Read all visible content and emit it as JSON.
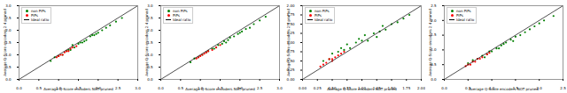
{
  "chart_data": [
    {
      "type": "scatter",
      "x_label": "Average Q-Score encoders NOT pruned",
      "y_label": "Average Q-Score encoders 2:4 pruned",
      "xlim": [
        0,
        3
      ],
      "ylim": [
        0,
        3
      ],
      "xticks": [
        {
          "value": 0,
          "label": "0.0"
        },
        {
          "value": 0.5,
          "label": "0.5"
        },
        {
          "value": 1,
          "label": "1.0"
        },
        {
          "value": 1.5,
          "label": "1.5"
        },
        {
          "value": 2,
          "label": "2.0"
        },
        {
          "value": 2.5,
          "label": "2.5"
        },
        {
          "value": 3,
          "label": "3.0"
        }
      ],
      "yticks": [
        {
          "value": 0,
          "label": "0.0"
        },
        {
          "value": 0.5,
          "label": "0.5"
        },
        {
          "value": 1,
          "label": "1.0"
        },
        {
          "value": 1.5,
          "label": "1.5"
        },
        {
          "value": 2,
          "label": "2.0"
        },
        {
          "value": 2.5,
          "label": "2.5"
        },
        {
          "value": 3,
          "label": "3.0"
        }
      ],
      "legend": "upper left",
      "series": [
        {
          "name": "non PiPs",
          "color": "green",
          "marker": "circle",
          "x": [
            0.8,
            0.9,
            1.0,
            1.1,
            1.2,
            1.25,
            1.3,
            1.4,
            1.5,
            1.55,
            1.6,
            1.7,
            1.8,
            1.85,
            1.9,
            2.0,
            2.1,
            2.2,
            2.3,
            2.45,
            2.6,
            1.35,
            1.65,
            1.95
          ],
          "y": [
            0.75,
            0.9,
            0.95,
            1.0,
            1.15,
            1.2,
            1.2,
            1.3,
            1.45,
            1.5,
            1.5,
            1.6,
            1.75,
            1.8,
            1.8,
            1.9,
            2.0,
            2.1,
            2.2,
            2.35,
            2.5,
            1.4,
            1.55,
            1.85
          ]
        },
        {
          "name": "PiPs",
          "color": "red",
          "marker": "circle",
          "x": [
            0.95,
            1.0,
            1.05,
            1.1,
            1.15,
            1.2,
            1.25,
            1.3,
            1.35,
            1.45
          ],
          "y": [
            0.9,
            0.95,
            1.0,
            1.0,
            1.1,
            1.15,
            1.15,
            1.25,
            1.3,
            1.35
          ]
        },
        {
          "name": "Ideal ratio",
          "type": "line",
          "color": "black",
          "x": [
            0,
            3
          ],
          "y": [
            0,
            3
          ]
        }
      ]
    },
    {
      "type": "scatter",
      "x_label": "Average Q-Score encoders NOT pruned",
      "y_label": "Average Q-Score encoders 2:4 pruned",
      "xlim": [
        0,
        3
      ],
      "ylim": [
        0,
        3
      ],
      "xticks": [
        {
          "value": 0,
          "label": "0.0"
        },
        {
          "value": 0.5,
          "label": "0.5"
        },
        {
          "value": 1,
          "label": "1.0"
        },
        {
          "value": 1.5,
          "label": "1.5"
        },
        {
          "value": 2,
          "label": "2.0"
        },
        {
          "value": 2.5,
          "label": "2.5"
        },
        {
          "value": 3,
          "label": "3.0"
        }
      ],
      "yticks": [
        {
          "value": 0,
          "label": "0.0"
        },
        {
          "value": 0.5,
          "label": "0.5"
        },
        {
          "value": 1,
          "label": "1.0"
        },
        {
          "value": 1.5,
          "label": "1.5"
        },
        {
          "value": 2,
          "label": "2.0"
        },
        {
          "value": 2.5,
          "label": "2.5"
        },
        {
          "value": 3,
          "label": "3.0"
        }
      ],
      "legend": "upper left",
      "series": [
        {
          "name": "non PiPs",
          "color": "green",
          "marker": "circle",
          "x": [
            0.75,
            0.85,
            0.95,
            1.05,
            1.15,
            1.2,
            1.3,
            1.4,
            1.45,
            1.55,
            1.6,
            1.7,
            1.75,
            1.85,
            1.95,
            2.05,
            2.15,
            2.25,
            2.35,
            2.5,
            2.65,
            1.35,
            1.65,
            2.0
          ],
          "y": [
            0.7,
            0.85,
            0.9,
            1.0,
            1.1,
            1.15,
            1.25,
            1.3,
            1.4,
            1.45,
            1.55,
            1.6,
            1.7,
            1.75,
            1.85,
            1.95,
            2.05,
            2.1,
            2.25,
            2.4,
            2.55,
            1.25,
            1.5,
            1.9
          ]
        },
        {
          "name": "PiPs",
          "color": "red",
          "marker": "circle",
          "x": [
            0.9,
            0.95,
            1.0,
            1.05,
            1.1,
            1.15,
            1.2,
            1.3,
            1.4,
            1.5
          ],
          "y": [
            0.85,
            0.9,
            0.95,
            1.0,
            1.05,
            1.1,
            1.15,
            1.2,
            1.3,
            1.4
          ]
        },
        {
          "name": "Ideal ratio",
          "type": "line",
          "color": "black",
          "x": [
            0,
            3
          ],
          "y": [
            0,
            3
          ]
        }
      ]
    },
    {
      "type": "scatter",
      "x_label": "Average Q-Score encoders NOT pruned",
      "y_label": "Average Q-Score encoders 2:4 pruned",
      "xlim": [
        0,
        2
      ],
      "ylim": [
        0,
        2
      ],
      "xticks": [
        {
          "value": 0,
          "label": "0.00"
        },
        {
          "value": 0.25,
          "label": "0.25"
        },
        {
          "value": 0.5,
          "label": "0.50"
        },
        {
          "value": 0.75,
          "label": "0.75"
        },
        {
          "value": 1,
          "label": "1.00"
        },
        {
          "value": 1.25,
          "label": "1.25"
        },
        {
          "value": 1.5,
          "label": "1.50"
        },
        {
          "value": 1.75,
          "label": "1.75"
        },
        {
          "value": 2,
          "label": "2.00"
        }
      ],
      "yticks": [
        {
          "value": 0,
          "label": "0.00"
        },
        {
          "value": 0.25,
          "label": "0.25"
        },
        {
          "value": 0.5,
          "label": "0.50"
        },
        {
          "value": 0.75,
          "label": "0.75"
        },
        {
          "value": 1,
          "label": "1.00"
        },
        {
          "value": 1.25,
          "label": "1.25"
        },
        {
          "value": 1.5,
          "label": "1.50"
        },
        {
          "value": 1.75,
          "label": "1.75"
        },
        {
          "value": 2,
          "label": "2.00"
        }
      ],
      "legend": "upper left",
      "series": [
        {
          "name": "non PiPs",
          "color": "green",
          "marker": "circle",
          "x": [
            0.35,
            0.45,
            0.5,
            0.6,
            0.7,
            0.75,
            0.8,
            0.9,
            1.0,
            1.05,
            1.1,
            1.2,
            1.3,
            1.35,
            1.4,
            1.5,
            1.6,
            1.7,
            1.8,
            0.65,
            0.95,
            1.25
          ],
          "y": [
            0.5,
            0.55,
            0.7,
            0.75,
            0.8,
            0.95,
            0.85,
            1.0,
            1.05,
            1.2,
            1.05,
            1.25,
            1.3,
            1.45,
            1.35,
            1.5,
            1.55,
            1.65,
            1.75,
            0.85,
            1.1,
            1.15
          ]
        },
        {
          "name": "PiPs",
          "color": "red",
          "marker": "circle",
          "x": [
            0.3,
            0.35,
            0.4,
            0.45,
            0.5,
            0.55,
            0.6,
            0.65,
            0.7,
            0.5
          ],
          "y": [
            0.35,
            0.4,
            0.45,
            0.55,
            0.5,
            0.6,
            0.65,
            0.7,
            0.75,
            0.55
          ]
        },
        {
          "name": "Ideal ratio",
          "type": "line",
          "color": "black",
          "x": [
            0,
            2
          ],
          "y": [
            0,
            2
          ]
        }
      ]
    },
    {
      "type": "scatter",
      "x_label": "Average Q-Score encoders NOT pruned",
      "y_label": "Average Q-Score encoders 2:4 pruned",
      "xlim": [
        0,
        2.5
      ],
      "ylim": [
        0,
        2.5
      ],
      "xticks": [
        {
          "value": 0,
          "label": "0.0"
        },
        {
          "value": 0.5,
          "label": "0.5"
        },
        {
          "value": 1,
          "label": "1.0"
        },
        {
          "value": 1.5,
          "label": "1.5"
        },
        {
          "value": 2,
          "label": "2.0"
        },
        {
          "value": 2.5,
          "label": "2.5"
        }
      ],
      "yticks": [
        {
          "value": 0,
          "label": "0.0"
        },
        {
          "value": 0.5,
          "label": "0.5"
        },
        {
          "value": 1,
          "label": "1.0"
        },
        {
          "value": 1.5,
          "label": "1.5"
        },
        {
          "value": 2,
          "label": "2.0"
        },
        {
          "value": 2.5,
          "label": "2.5"
        }
      ],
      "legend": "upper left",
      "series": [
        {
          "name": "non PiPs",
          "color": "green",
          "marker": "circle",
          "x": [
            0.5,
            0.6,
            0.7,
            0.8,
            0.9,
            0.95,
            1.0,
            1.1,
            1.2,
            1.25,
            1.3,
            1.4,
            1.5,
            1.6,
            1.7,
            1.8,
            1.9,
            2.0,
            2.1,
            2.3,
            0.85,
            1.15,
            1.45
          ],
          "y": [
            0.55,
            0.65,
            0.7,
            0.8,
            0.85,
            0.95,
            0.95,
            1.05,
            1.15,
            1.2,
            1.25,
            1.35,
            1.45,
            1.5,
            1.6,
            1.7,
            1.8,
            1.9,
            2.0,
            2.15,
            0.75,
            1.05,
            1.3
          ]
        },
        {
          "name": "PiPs",
          "color": "red",
          "marker": "circle",
          "x": [
            0.45,
            0.5,
            0.55,
            0.6,
            0.65,
            0.7,
            0.75,
            0.8,
            0.9,
            0.95
          ],
          "y": [
            0.45,
            0.5,
            0.5,
            0.6,
            0.6,
            0.7,
            0.7,
            0.75,
            0.85,
            0.9
          ]
        },
        {
          "name": "Ideal ratio",
          "type": "line",
          "color": "black",
          "x": [
            0,
            2.5
          ],
          "y": [
            0,
            2.5
          ]
        }
      ]
    }
  ]
}
